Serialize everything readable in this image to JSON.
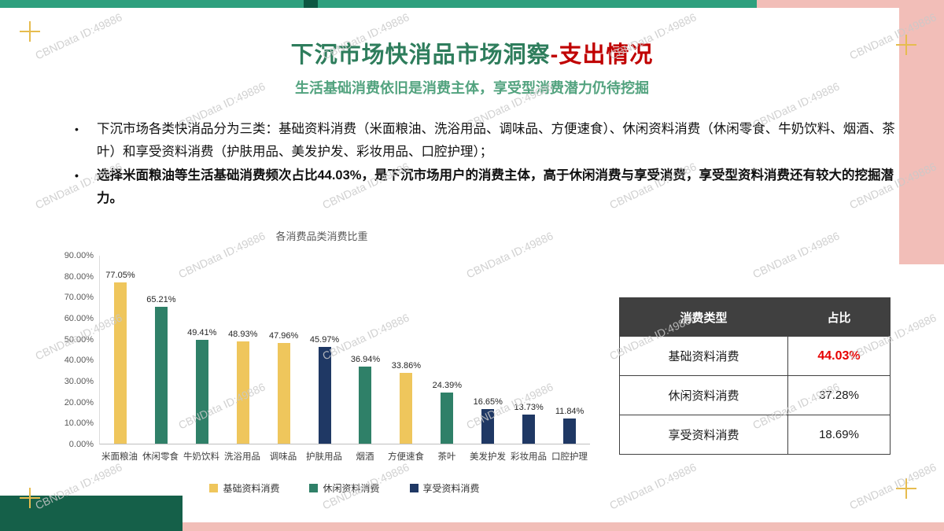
{
  "watermark": {
    "text": "CBNData ID:49886"
  },
  "header": {
    "title_green": "下沉市场快消品市场洞察",
    "title_red": "-支出情况",
    "subtitle": "生活基础消费依旧是消费主体，享受型消费潜力仍待挖掘"
  },
  "bullets": [
    {
      "text": "下沉市场各类快消品分为三类：基础资料消费（米面粮油、洗浴用品、调味品、方便速食）、休闲资料消费（休闲零食、牛奶饮料、烟酒、茶叶）和享受资料消费（护肤用品、美发护发、彩妆用品、口腔护理）；",
      "bold": false
    },
    {
      "text": "选择米面粮油等生活基础消费频次占比44.03%，是下沉市场用户的消费主体，高于休闲消费与享受消费，享受型资料消费还有较大的挖掘潜力。",
      "bold": true
    }
  ],
  "chart_data": {
    "type": "bar",
    "title": "各消费品类消费比重",
    "categories": [
      "米面粮油",
      "休闲零食",
      "牛奶饮料",
      "洗浴用品",
      "调味品",
      "护肤用品",
      "烟酒",
      "方便速食",
      "茶叶",
      "美发护发",
      "彩妆用品",
      "口腔护理"
    ],
    "values": [
      77.05,
      65.21,
      49.41,
      48.93,
      47.96,
      45.97,
      36.94,
      33.86,
      24.39,
      16.65,
      13.73,
      11.84
    ],
    "value_labels": [
      "77.05%",
      "65.21%",
      "49.41%",
      "48.93%",
      "47.96%",
      "45.97%",
      "36.94%",
      "33.86%",
      "24.39%",
      "16.65%",
      "13.73%",
      "11.84%"
    ],
    "bar_series": [
      "basic",
      "leisure",
      "leisure",
      "basic",
      "basic",
      "enjoy",
      "leisure",
      "basic",
      "leisure",
      "enjoy",
      "enjoy",
      "enjoy"
    ],
    "ylim": [
      0,
      90
    ],
    "ytick_labels": [
      "0.00%",
      "10.00%",
      "20.00%",
      "30.00%",
      "40.00%",
      "50.00%",
      "60.00%",
      "70.00%",
      "80.00%",
      "90.00%"
    ],
    "grid": false,
    "legend_position": "bottom",
    "legend": [
      {
        "key": "basic",
        "label": "基础资料消费",
        "color": "#efc65c"
      },
      {
        "key": "leisure",
        "label": "休闲资料消费",
        "color": "#2f8068"
      },
      {
        "key": "enjoy",
        "label": "享受资料消费",
        "color": "#1f3864"
      }
    ]
  },
  "table": {
    "headers": [
      "消费类型",
      "占比"
    ],
    "rows": [
      {
        "type": "基础资料消费",
        "value": "44.03%",
        "highlight": true
      },
      {
        "type": "休闲资料消费",
        "value": "37.28%",
        "highlight": false
      },
      {
        "type": "享受资料消费",
        "value": "18.69%",
        "highlight": false
      }
    ]
  },
  "colors": {
    "title_green": "#2e7d5c",
    "title_red": "#c00000",
    "subtitle_green": "#53a37f",
    "accent_green": "#2ea07e",
    "accent_dark_green": "#156049",
    "accent_pink": "#f2beb8",
    "accent_yellow": "#e6bc4f",
    "table_header_bg": "#404040",
    "highlight_red": "#e60000"
  }
}
